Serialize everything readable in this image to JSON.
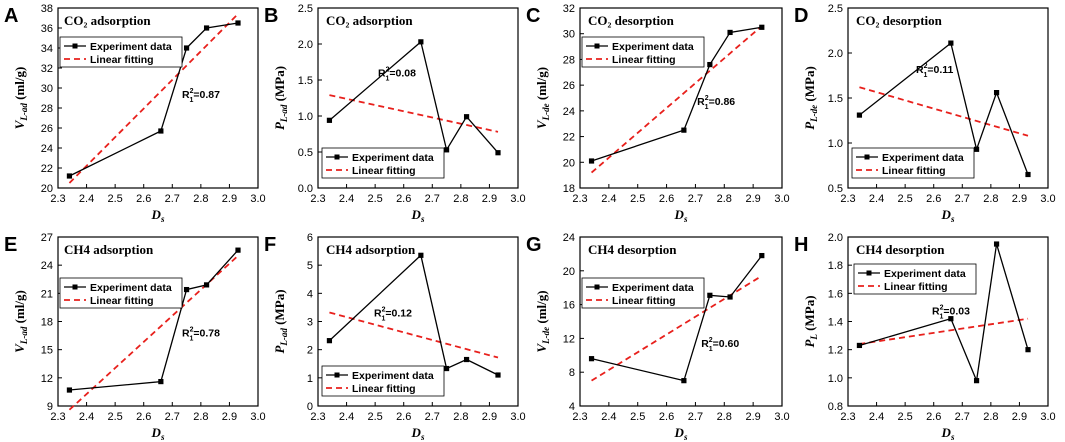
{
  "legend": {
    "experiment": "Experiment data",
    "fitting": "Linear fitting"
  },
  "chart_data": [
    {
      "panel": "A",
      "type": "line",
      "title": "CO₂ adsorption",
      "xlabel": "D",
      "xlabel_sub": "s",
      "ylabel": "V",
      "ylabel_sub": "L-ad",
      "ylabel_unit": " (ml/g)",
      "x": [
        2.34,
        2.66,
        2.75,
        2.82,
        2.93
      ],
      "values": [
        21.2,
        25.7,
        34.0,
        36.0,
        36.5
      ],
      "fit": {
        "x": [
          2.34,
          2.93
        ],
        "y": [
          20.5,
          37.4
        ]
      },
      "xlim": [
        2.3,
        3.0
      ],
      "ylim": [
        20,
        38
      ],
      "xticks": [
        "2.3",
        "2.4",
        "2.5",
        "2.6",
        "2.7",
        "2.8",
        "2.9",
        "3.0"
      ],
      "yticks": [
        "20",
        "22",
        "24",
        "26",
        "28",
        "30",
        "32",
        "34",
        "36",
        "38"
      ],
      "r2": "=0.87",
      "legend_position": "top-left"
    },
    {
      "panel": "B",
      "type": "line",
      "title": "CO₂ adsorption",
      "xlabel": "D",
      "xlabel_sub": "s",
      "ylabel": "P",
      "ylabel_sub": "L-ad",
      "ylabel_unit": " (MPa)",
      "x": [
        2.34,
        2.66,
        2.75,
        2.82,
        2.93
      ],
      "values": [
        0.94,
        2.03,
        0.53,
        0.99,
        0.49
      ],
      "fit": {
        "x": [
          2.34,
          2.93
        ],
        "y": [
          1.29,
          0.78
        ]
      },
      "xlim": [
        2.3,
        3.0
      ],
      "ylim": [
        0,
        2.5
      ],
      "xticks": [
        "2.3",
        "2.4",
        "2.5",
        "2.6",
        "2.7",
        "2.8",
        "2.9",
        "3.0"
      ],
      "yticks": [
        "0.0",
        "0.5",
        "1.0",
        "1.5",
        "2.0",
        "2.5"
      ],
      "r2": "=0.08",
      "legend_position": "bottom-right"
    },
    {
      "panel": "C",
      "type": "line",
      "title": "CO₂ desorption",
      "xlabel": "D",
      "xlabel_sub": "s",
      "ylabel": "V",
      "ylabel_sub": "L-de",
      "ylabel_unit": " (ml/g)",
      "x": [
        2.34,
        2.66,
        2.75,
        2.82,
        2.93
      ],
      "values": [
        20.1,
        22.5,
        27.6,
        30.1,
        30.5
      ],
      "fit": {
        "x": [
          2.34,
          2.93
        ],
        "y": [
          19.2,
          30.6
        ]
      },
      "xlim": [
        2.3,
        3.0
      ],
      "ylim": [
        18,
        32
      ],
      "xticks": [
        "2.3",
        "2.4",
        "2.5",
        "2.6",
        "2.7",
        "2.8",
        "2.9",
        "3.0"
      ],
      "yticks": [
        "18",
        "20",
        "22",
        "24",
        "26",
        "28",
        "30",
        "32"
      ],
      "r2": "=0.86",
      "legend_position": "top-left"
    },
    {
      "panel": "D",
      "type": "line",
      "title": "CO₂ desorption",
      "xlabel": "D",
      "xlabel_sub": "s",
      "ylabel": "P",
      "ylabel_sub": "L-de",
      "ylabel_unit": " (MPa)",
      "x": [
        2.34,
        2.66,
        2.75,
        2.82,
        2.93
      ],
      "values": [
        1.31,
        2.11,
        0.93,
        1.56,
        0.65
      ],
      "fit": {
        "x": [
          2.34,
          2.93
        ],
        "y": [
          1.62,
          1.08
        ]
      },
      "xlim": [
        2.3,
        3.0
      ],
      "ylim": [
        0.5,
        2.5
      ],
      "xticks": [
        "2.3",
        "2.4",
        "2.5",
        "2.6",
        "2.7",
        "2.8",
        "2.9",
        "3.0"
      ],
      "yticks": [
        "0.5",
        "1.0",
        "1.5",
        "2.0",
        "2.5"
      ],
      "r2": "=0.11",
      "legend_position": "bottom-right"
    },
    {
      "panel": "E",
      "type": "line",
      "title": "CH4 adsorption",
      "xlabel": "D",
      "xlabel_sub": "s",
      "ylabel": "V",
      "ylabel_sub": "L-ad",
      "ylabel_unit": " (ml/g)",
      "x": [
        2.34,
        2.66,
        2.75,
        2.82,
        2.93
      ],
      "values": [
        10.7,
        11.6,
        21.4,
        21.9,
        25.6
      ],
      "fit": {
        "x": [
          2.34,
          2.93
        ],
        "y": [
          8.6,
          25.0
        ]
      },
      "xlim": [
        2.3,
        3.0
      ],
      "ylim": [
        9,
        27
      ],
      "xticks": [
        "2.3",
        "2.4",
        "2.5",
        "2.6",
        "2.7",
        "2.8",
        "2.9",
        "3.0"
      ],
      "yticks": [
        "9",
        "12",
        "15",
        "18",
        "21",
        "24",
        "27"
      ],
      "r2": "=0.78",
      "legend_position": "top-left"
    },
    {
      "panel": "F",
      "type": "line",
      "title": "CH4 adsorption",
      "xlabel": "D",
      "xlabel_sub": "s",
      "ylabel": "P",
      "ylabel_sub": "L-ad",
      "ylabel_unit": " (MPa)",
      "x": [
        2.34,
        2.66,
        2.75,
        2.82,
        2.93
      ],
      "values": [
        2.32,
        5.35,
        1.33,
        1.65,
        1.1
      ],
      "fit": {
        "x": [
          2.34,
          2.93
        ],
        "y": [
          3.32,
          1.72
        ]
      },
      "xlim": [
        2.3,
        3.0
      ],
      "ylim": [
        0,
        6
      ],
      "xticks": [
        "2.3",
        "2.4",
        "2.5",
        "2.6",
        "2.7",
        "2.8",
        "2.9",
        "3.0"
      ],
      "yticks": [
        "0",
        "1",
        "2",
        "3",
        "4",
        "5",
        "6"
      ],
      "r2": "=0.12",
      "legend_position": "bottom-right"
    },
    {
      "panel": "G",
      "type": "line",
      "title": "CH4 desorption",
      "xlabel": "D",
      "xlabel_sub": "s",
      "ylabel": "V",
      "ylabel_sub": "L-de",
      "ylabel_unit": " (ml/g)",
      "x": [
        2.34,
        2.66,
        2.75,
        2.82,
        2.93
      ],
      "values": [
        9.6,
        7.0,
        17.1,
        16.9,
        21.8
      ],
      "fit": {
        "x": [
          2.34,
          2.93
        ],
        "y": [
          7.0,
          19.4
        ]
      },
      "xlim": [
        2.3,
        3.0
      ],
      "ylim": [
        4,
        24
      ],
      "xticks": [
        "2.3",
        "2.4",
        "2.5",
        "2.6",
        "2.7",
        "2.8",
        "2.9",
        "3.0"
      ],
      "yticks": [
        "4",
        "8",
        "12",
        "16",
        "20",
        "24"
      ],
      "r2": "=0.60",
      "legend_position": "top-left"
    },
    {
      "panel": "H",
      "type": "line",
      "title": "CH4 desorption",
      "xlabel": "D",
      "xlabel_sub": "s",
      "ylabel": "P",
      "ylabel_sub": "L",
      "ylabel_unit": " (MPa)",
      "x": [
        2.34,
        2.66,
        2.75,
        2.82,
        2.93
      ],
      "values": [
        1.23,
        1.42,
        0.98,
        1.95,
        1.2
      ],
      "fit": {
        "x": [
          2.34,
          2.93
        ],
        "y": [
          1.24,
          1.42
        ]
      },
      "xlim": [
        2.3,
        3.0
      ],
      "ylim": [
        0.8,
        2.0
      ],
      "xticks": [
        "2.3",
        "2.4",
        "2.5",
        "2.6",
        "2.7",
        "2.8",
        "2.9",
        "3.0"
      ],
      "yticks": [
        "0.8",
        "1.0",
        "1.2",
        "1.4",
        "1.6",
        "1.8",
        "2.0"
      ],
      "r2": "=0.03",
      "legend_position": "top-right"
    }
  ]
}
